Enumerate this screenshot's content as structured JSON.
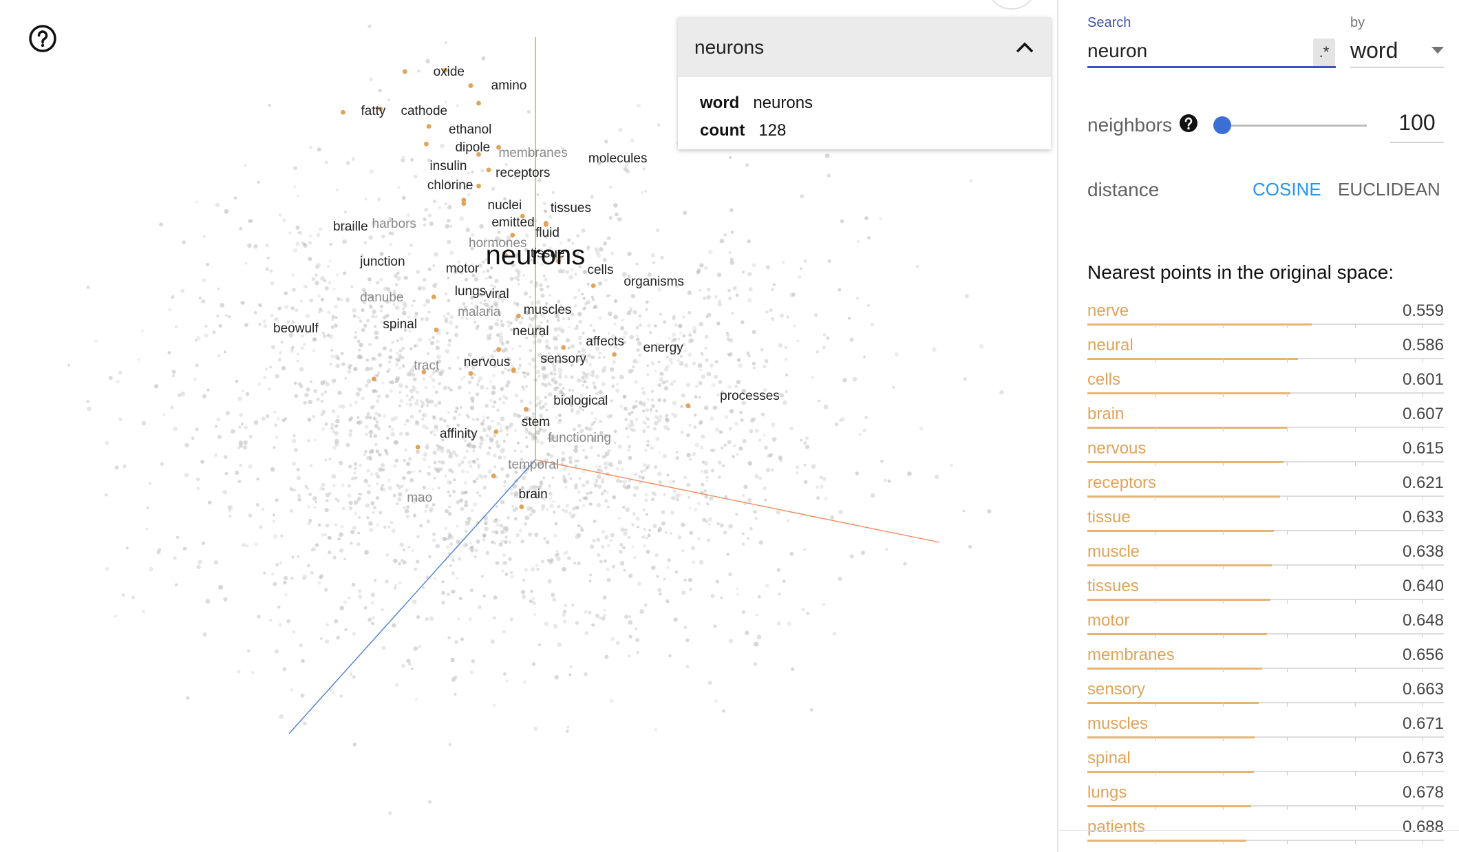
{
  "inspect_card": {
    "title": "neurons",
    "fields": [
      {
        "key": "word",
        "value": "neurons"
      },
      {
        "key": "count",
        "value": "128"
      }
    ]
  },
  "search": {
    "label": "Search",
    "value": "neuron",
    "regex_label": ".*",
    "by_label": "by",
    "by_value": "word"
  },
  "neighbors": {
    "label": "neighbors",
    "value": "100",
    "slider_fraction": 0.1
  },
  "distance": {
    "label": "distance",
    "options": [
      "COSINE",
      "EUCLIDEAN"
    ],
    "selected": "COSINE"
  },
  "nearest": {
    "title": "Nearest points in the original space:",
    "items": [
      {
        "word": "nerve",
        "distance": "0.559"
      },
      {
        "word": "neural",
        "distance": "0.586"
      },
      {
        "word": "cells",
        "distance": "0.601"
      },
      {
        "word": "brain",
        "distance": "0.607"
      },
      {
        "word": "nervous",
        "distance": "0.615"
      },
      {
        "word": "receptors",
        "distance": "0.621"
      },
      {
        "word": "tissue",
        "distance": "0.633"
      },
      {
        "word": "muscle",
        "distance": "0.638"
      },
      {
        "word": "tissues",
        "distance": "0.640"
      },
      {
        "word": "motor",
        "distance": "0.648"
      },
      {
        "word": "membranes",
        "distance": "0.656"
      },
      {
        "word": "sensory",
        "distance": "0.663"
      },
      {
        "word": "muscles",
        "distance": "0.671"
      },
      {
        "word": "spinal",
        "distance": "0.673"
      },
      {
        "word": "lungs",
        "distance": "0.678"
      },
      {
        "word": "patients",
        "distance": "0.688"
      }
    ]
  },
  "projection": {
    "selected_point": "neurons",
    "point_labels": [
      {
        "text": "oxide"
      },
      {
        "text": "amino"
      },
      {
        "text": "fatty"
      },
      {
        "text": "cathode"
      },
      {
        "text": "ethanol"
      },
      {
        "text": "dipole"
      },
      {
        "text": "membranes"
      },
      {
        "text": "molecules"
      },
      {
        "text": "insulin"
      },
      {
        "text": "receptors"
      },
      {
        "text": "chlorine"
      },
      {
        "text": "nuclei"
      },
      {
        "text": "tissues"
      },
      {
        "text": "braille"
      },
      {
        "text": "harbors"
      },
      {
        "text": "emitted"
      },
      {
        "text": "fluid"
      },
      {
        "text": "hormones"
      },
      {
        "text": "tissue"
      },
      {
        "text": "junction"
      },
      {
        "text": "motor"
      },
      {
        "text": "neurons"
      },
      {
        "text": "cells"
      },
      {
        "text": "organisms"
      },
      {
        "text": "lungs"
      },
      {
        "text": "viral"
      },
      {
        "text": "danube"
      },
      {
        "text": "malaria"
      },
      {
        "text": "muscles"
      },
      {
        "text": "beowulf"
      },
      {
        "text": "spinal"
      },
      {
        "text": "neural"
      },
      {
        "text": "affects"
      },
      {
        "text": "energy"
      },
      {
        "text": "tract"
      },
      {
        "text": "nervous"
      },
      {
        "text": "sensory"
      },
      {
        "text": "processes"
      },
      {
        "text": "biological"
      },
      {
        "text": "stem"
      },
      {
        "text": "affinity"
      },
      {
        "text": "functioning"
      },
      {
        "text": "temporal"
      },
      {
        "text": "mao"
      },
      {
        "text": "brain"
      }
    ],
    "colors": {
      "highlight_point": "#e0a35a",
      "background_point": "#bdbdbd",
      "axis_x": "#f08a5d",
      "axis_y": "#8bc34a",
      "axis_z": "#4a7fd8"
    }
  }
}
